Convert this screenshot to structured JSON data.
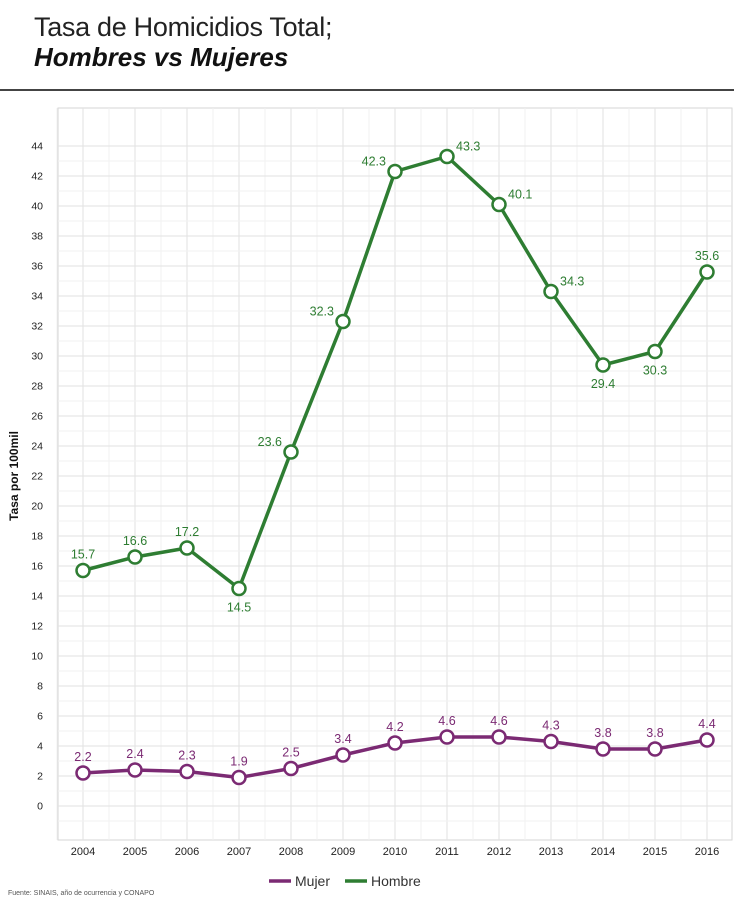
{
  "title": {
    "line1": "Tasa de Homicidios Total;",
    "line2": "Hombres vs Mujeres"
  },
  "source": "Fuente: SINAIS, año de ocurrencia y CONAPO",
  "colors": {
    "hombre": "#2e7d32",
    "mujer": "#7b2a73",
    "grid": "#e2e2e2"
  },
  "chart_data": {
    "type": "line",
    "title": "Tasa de Homicidios Total; Hombres vs Mujeres",
    "xlabel": "",
    "ylabel": "Tasa por 100mil",
    "categories": [
      "2004",
      "2005",
      "2006",
      "2007",
      "2008",
      "2009",
      "2010",
      "2011",
      "2012",
      "2013",
      "2014",
      "2015",
      "2016"
    ],
    "ylim": [
      0,
      44
    ],
    "yticks": [
      0,
      2,
      4,
      6,
      8,
      10,
      12,
      14,
      16,
      18,
      20,
      22,
      24,
      26,
      28,
      30,
      32,
      34,
      36,
      38,
      40,
      42,
      44
    ],
    "grid": true,
    "legend_position": "bottom-center",
    "series": [
      {
        "name": "Mujer",
        "color": "#7b2a73",
        "values": [
          2.2,
          2.4,
          2.3,
          1.9,
          2.5,
          3.4,
          4.2,
          4.6,
          4.6,
          4.3,
          3.8,
          3.8,
          4.4
        ],
        "labels": [
          "2.2",
          "2.4",
          "2.3",
          "1.9",
          "2.5",
          "3.4",
          "4.2",
          "4.6",
          "4.6",
          "4.3",
          "3.8",
          "3.8",
          "4.4"
        ]
      },
      {
        "name": "Hombre",
        "color": "#2e7d32",
        "values": [
          15.7,
          16.6,
          17.2,
          14.5,
          23.6,
          32.3,
          42.3,
          43.3,
          40.1,
          34.3,
          29.4,
          30.3,
          35.6
        ],
        "labels": [
          "15.7",
          "16.6",
          "17.2",
          "14.5",
          "23.6",
          "32.3",
          "42.3",
          "43.3",
          "40.1",
          "34.3",
          "29.4",
          "30.3",
          "35.6"
        ]
      }
    ]
  }
}
